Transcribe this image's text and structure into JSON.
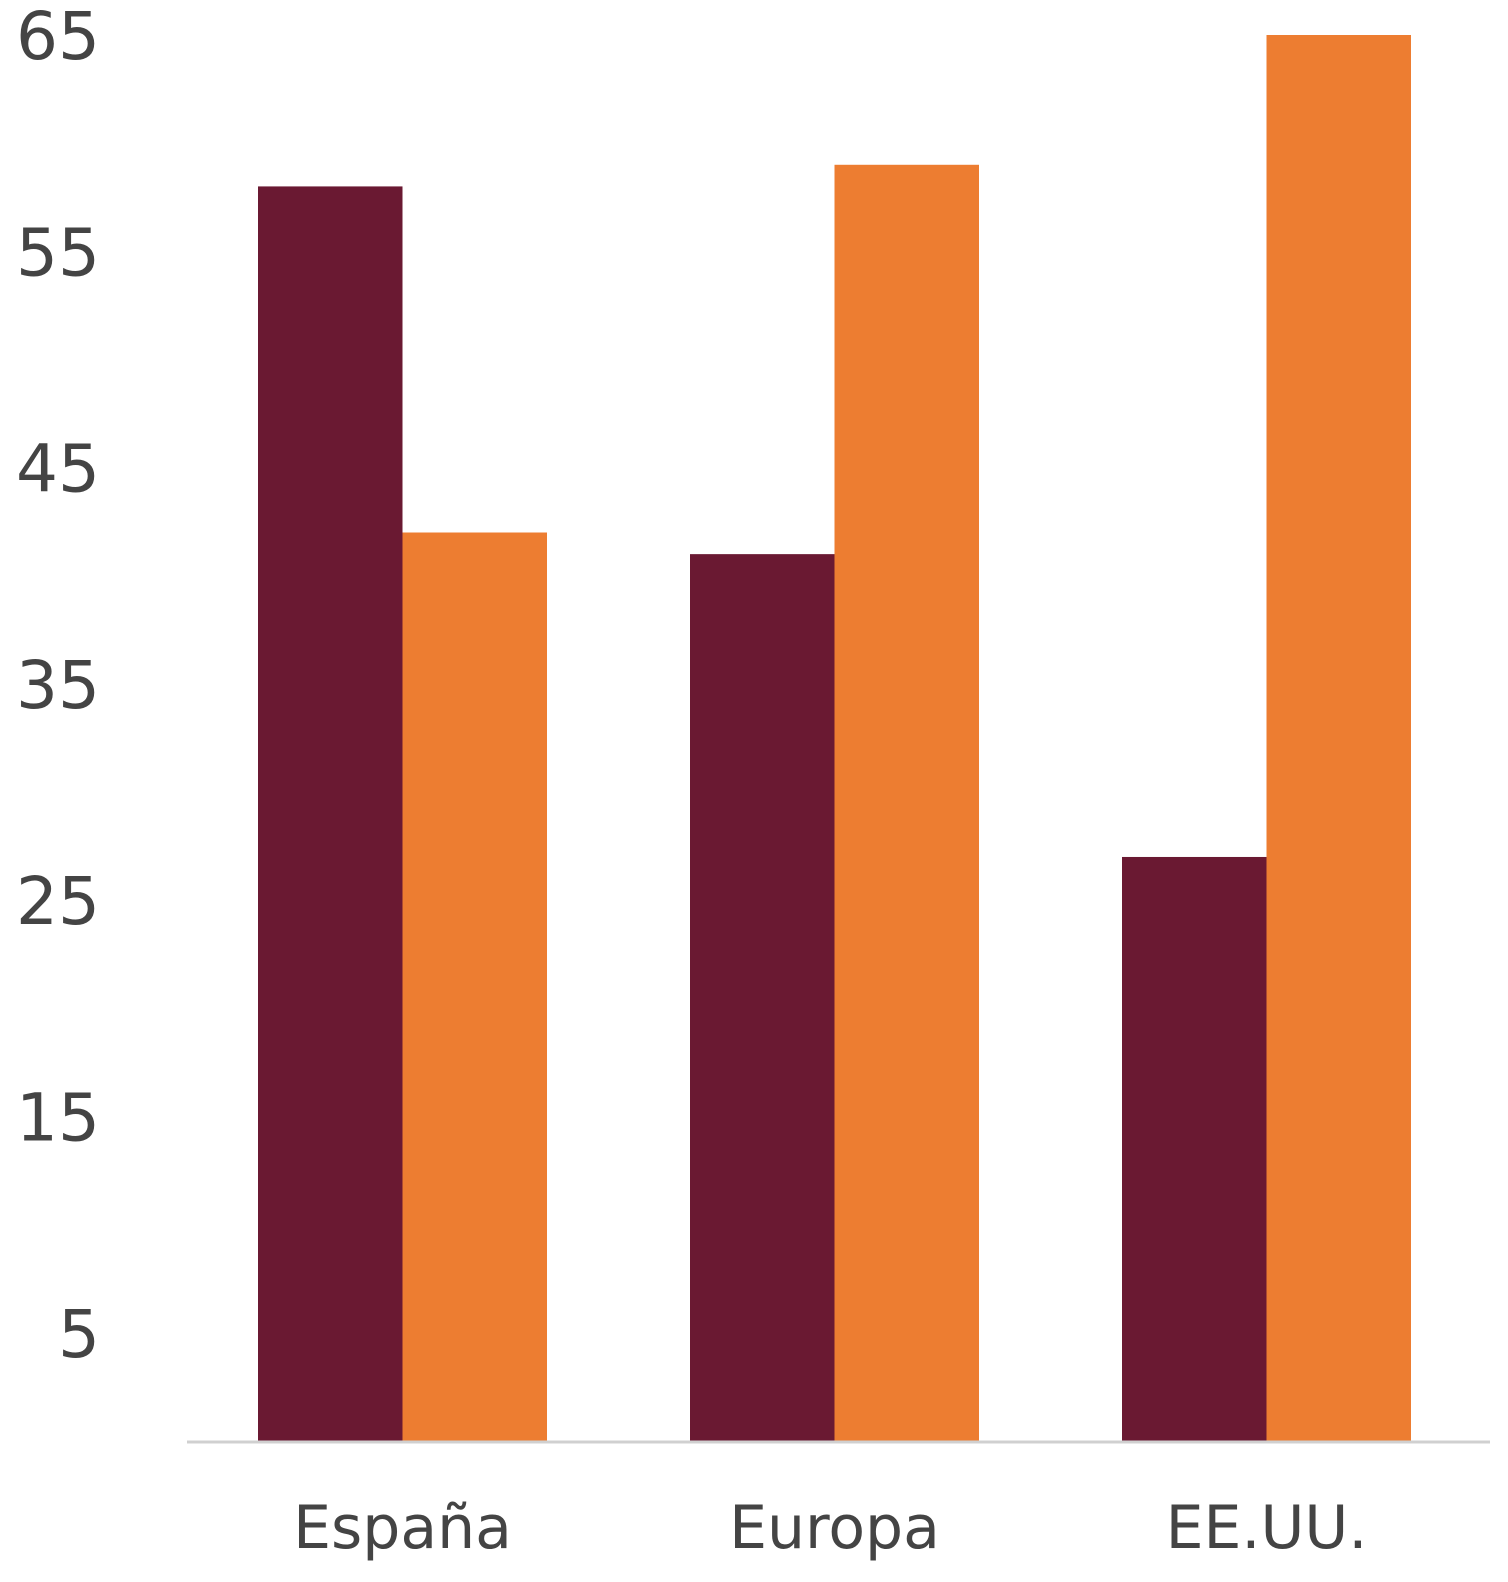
{
  "chart_data": {
    "type": "bar",
    "title": "",
    "xlabel": "",
    "ylabel": "",
    "categories": [
      "España",
      "Europa",
      "EE.UU."
    ],
    "series": [
      {
        "values": [
          58,
          41,
          27
        ],
        "color": "#6a1932"
      },
      {
        "values": [
          42,
          59,
          65
        ],
        "color": "#ed7d31"
      }
    ],
    "ylim": [
      0,
      65
    ],
    "yticks": [
      5,
      15,
      25,
      35,
      45,
      55,
      65
    ],
    "ytick_labels": [
      "5",
      "15",
      "25",
      "35",
      "45",
      "55",
      "65"
    ],
    "grid": false,
    "legend": "none",
    "axis_color": "#d0d0d0"
  }
}
